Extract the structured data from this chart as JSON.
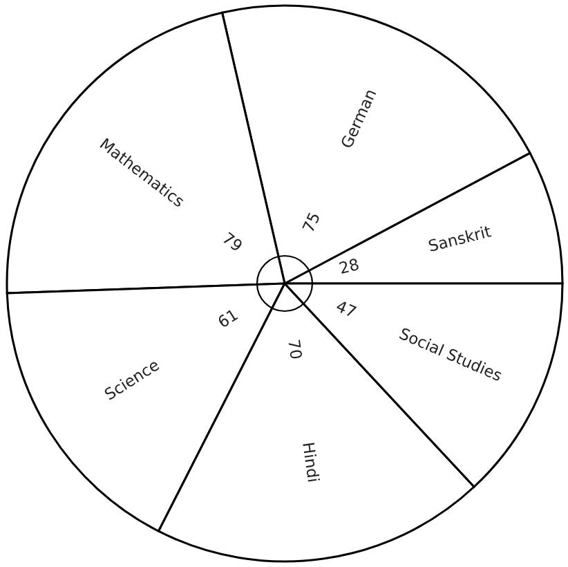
{
  "chart_data": {
    "type": "pie",
    "categories": [
      "Sanskrit",
      "German",
      "Mathematics",
      "Science",
      "Hindi",
      "Social Studies"
    ],
    "values": [
      28,
      75,
      79,
      61,
      70,
      47
    ],
    "colors": [
      "#ffffff",
      "#ffffff",
      "#ffffff",
      "#ffffff",
      "#ffffff",
      "#ffffff"
    ],
    "data_labels": true
  }
}
